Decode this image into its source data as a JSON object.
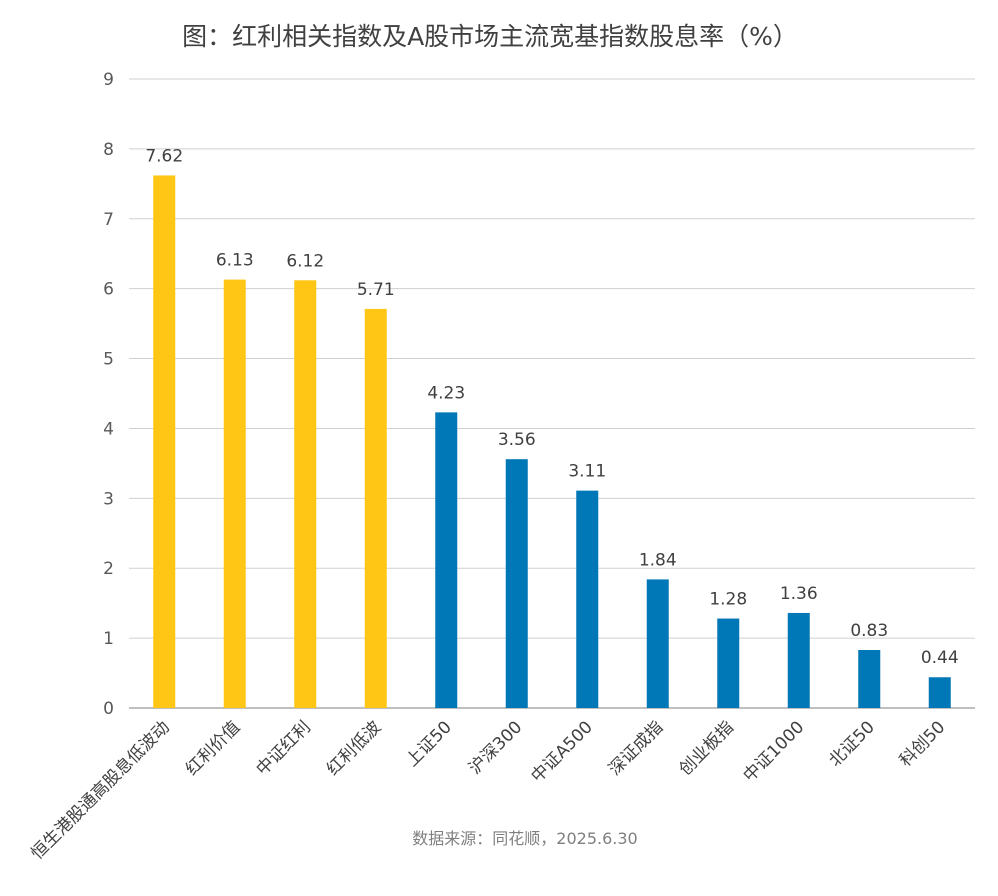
{
  "chart_data": {
    "type": "bar",
    "title": "图：红利相关指数及A股市场主流宽基指数股息率（%）",
    "categories": [
      "恒生港股通高股息低波动",
      "红利价值",
      "中证红利",
      "红利低波",
      "上证50",
      "沪深300",
      "中证A500",
      "深证成指",
      "创业板指",
      "中证1000",
      "北证50",
      "科创50"
    ],
    "values": [
      7.62,
      6.13,
      6.12,
      5.71,
      4.23,
      3.56,
      3.11,
      1.84,
      1.28,
      1.36,
      0.83,
      0.44
    ],
    "data_labels": [
      "7.62",
      "6.13",
      "6.12",
      "5.71",
      "4.23",
      "3.56",
      "3.11",
      "1.84",
      "1.28",
      "1.36",
      "0.83",
      "0.44"
    ],
    "groups": [
      "dividend",
      "dividend",
      "dividend",
      "dividend",
      "broad",
      "broad",
      "broad",
      "broad",
      "broad",
      "broad",
      "broad",
      "broad"
    ],
    "colors": {
      "dividend": "#FFC616",
      "broad": "#0077B6",
      "grid": "#d0d0d0",
      "axis": "#bfbfbf"
    },
    "ylim": [
      0,
      9
    ],
    "yticks": [
      "0",
      "1",
      "2",
      "3",
      "4",
      "5",
      "6",
      "7",
      "8",
      "9"
    ],
    "xlabel": "",
    "ylabel": "",
    "grid": true,
    "legend": "none",
    "source": "数据来源：同花顺，2025.6.30"
  }
}
